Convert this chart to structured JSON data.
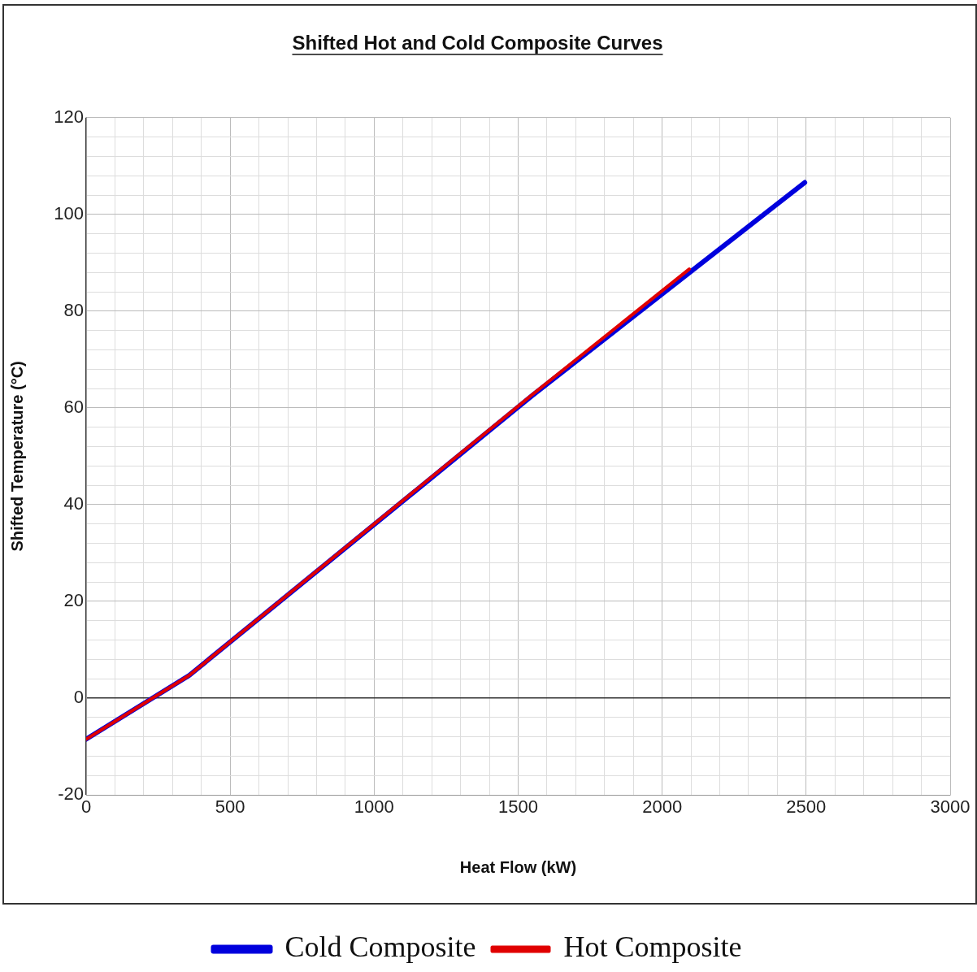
{
  "chart_data": {
    "type": "line",
    "title": "Shifted Hot and Cold Composite Curves",
    "xlabel": "Heat Flow (kW)",
    "ylabel": "Shifted Temperature (°C)",
    "series": [
      {
        "name": "Cold Composite",
        "color": "#0000dd",
        "x": [
          0,
          358,
          1550,
          2495
        ],
        "values": [
          -8.5,
          4.7,
          62.6,
          106.6
        ]
      },
      {
        "name": "Hot Composite",
        "color": "#e00000",
        "x": [
          0,
          358,
          1550,
          2094
        ],
        "values": [
          -8.5,
          4.7,
          62.8,
          88.7
        ]
      }
    ],
    "xlim": [
      0,
      3000
    ],
    "xticks": [
      0,
      {
        "value": 100,
        "label": null
      },
      {
        "value": 200,
        "label": null
      },
      {
        "value": 300,
        "label": null
      },
      {
        "value": 400,
        "label": null
      },
      500,
      {
        "value": 600,
        "label": null
      },
      {
        "value": 700,
        "label": null
      },
      {
        "value": 800,
        "label": null
      },
      {
        "value": 900,
        "label": null
      },
      1000,
      {
        "value": 1100,
        "label": null
      },
      {
        "value": 1200,
        "label": null
      },
      {
        "value": 1300,
        "label": null
      },
      {
        "value": 1400,
        "label": null
      },
      1500,
      {
        "value": 1600,
        "label": null
      },
      {
        "value": 1700,
        "label": null
      },
      {
        "value": 1800,
        "label": null
      },
      {
        "value": 1900,
        "label": null
      },
      2000,
      {
        "value": 2100,
        "label": null
      },
      {
        "value": 2200,
        "label": null
      },
      {
        "value": 2300,
        "label": null
      },
      {
        "value": 2400,
        "label": null
      },
      2500,
      {
        "value": 2600,
        "label": null
      },
      {
        "value": 2700,
        "label": null
      },
      {
        "value": 2800,
        "label": null
      },
      {
        "value": 2900,
        "label": null
      },
      3000
    ],
    "ylim": [
      -20,
      120
    ],
    "yticks": [
      -20,
      {
        "value": -16,
        "label": null
      },
      {
        "value": -12,
        "label": null
      },
      {
        "value": -8,
        "label": null
      },
      {
        "value": -4,
        "label": null
      },
      0,
      {
        "value": 4,
        "label": null
      },
      {
        "value": 8,
        "label": null
      },
      {
        "value": 12,
        "label": null
      },
      {
        "value": 16,
        "label": null
      },
      20,
      {
        "value": 24,
        "label": null
      },
      {
        "value": 28,
        "label": null
      },
      {
        "value": 32,
        "label": null
      },
      {
        "value": 36,
        "label": null
      },
      40,
      {
        "value": 44,
        "label": null
      },
      {
        "value": 48,
        "label": null
      },
      {
        "value": 52,
        "label": null
      },
      {
        "value": 56,
        "label": null
      },
      60,
      {
        "value": 64,
        "label": null
      },
      {
        "value": 68,
        "label": null
      },
      {
        "value": 72,
        "label": null
      },
      {
        "value": 76,
        "label": null
      },
      80,
      {
        "value": 84,
        "label": null
      },
      {
        "value": 88,
        "label": null
      },
      {
        "value": 92,
        "label": null
      },
      {
        "value": 96,
        "label": null
      },
      100,
      {
        "value": 104,
        "label": null
      },
      {
        "value": 108,
        "label": null
      },
      {
        "value": 112,
        "label": null
      },
      {
        "value": 116,
        "label": null
      },
      120
    ],
    "grid": true,
    "legend": "bottom",
    "marker": "none",
    "line_style": "solid"
  }
}
